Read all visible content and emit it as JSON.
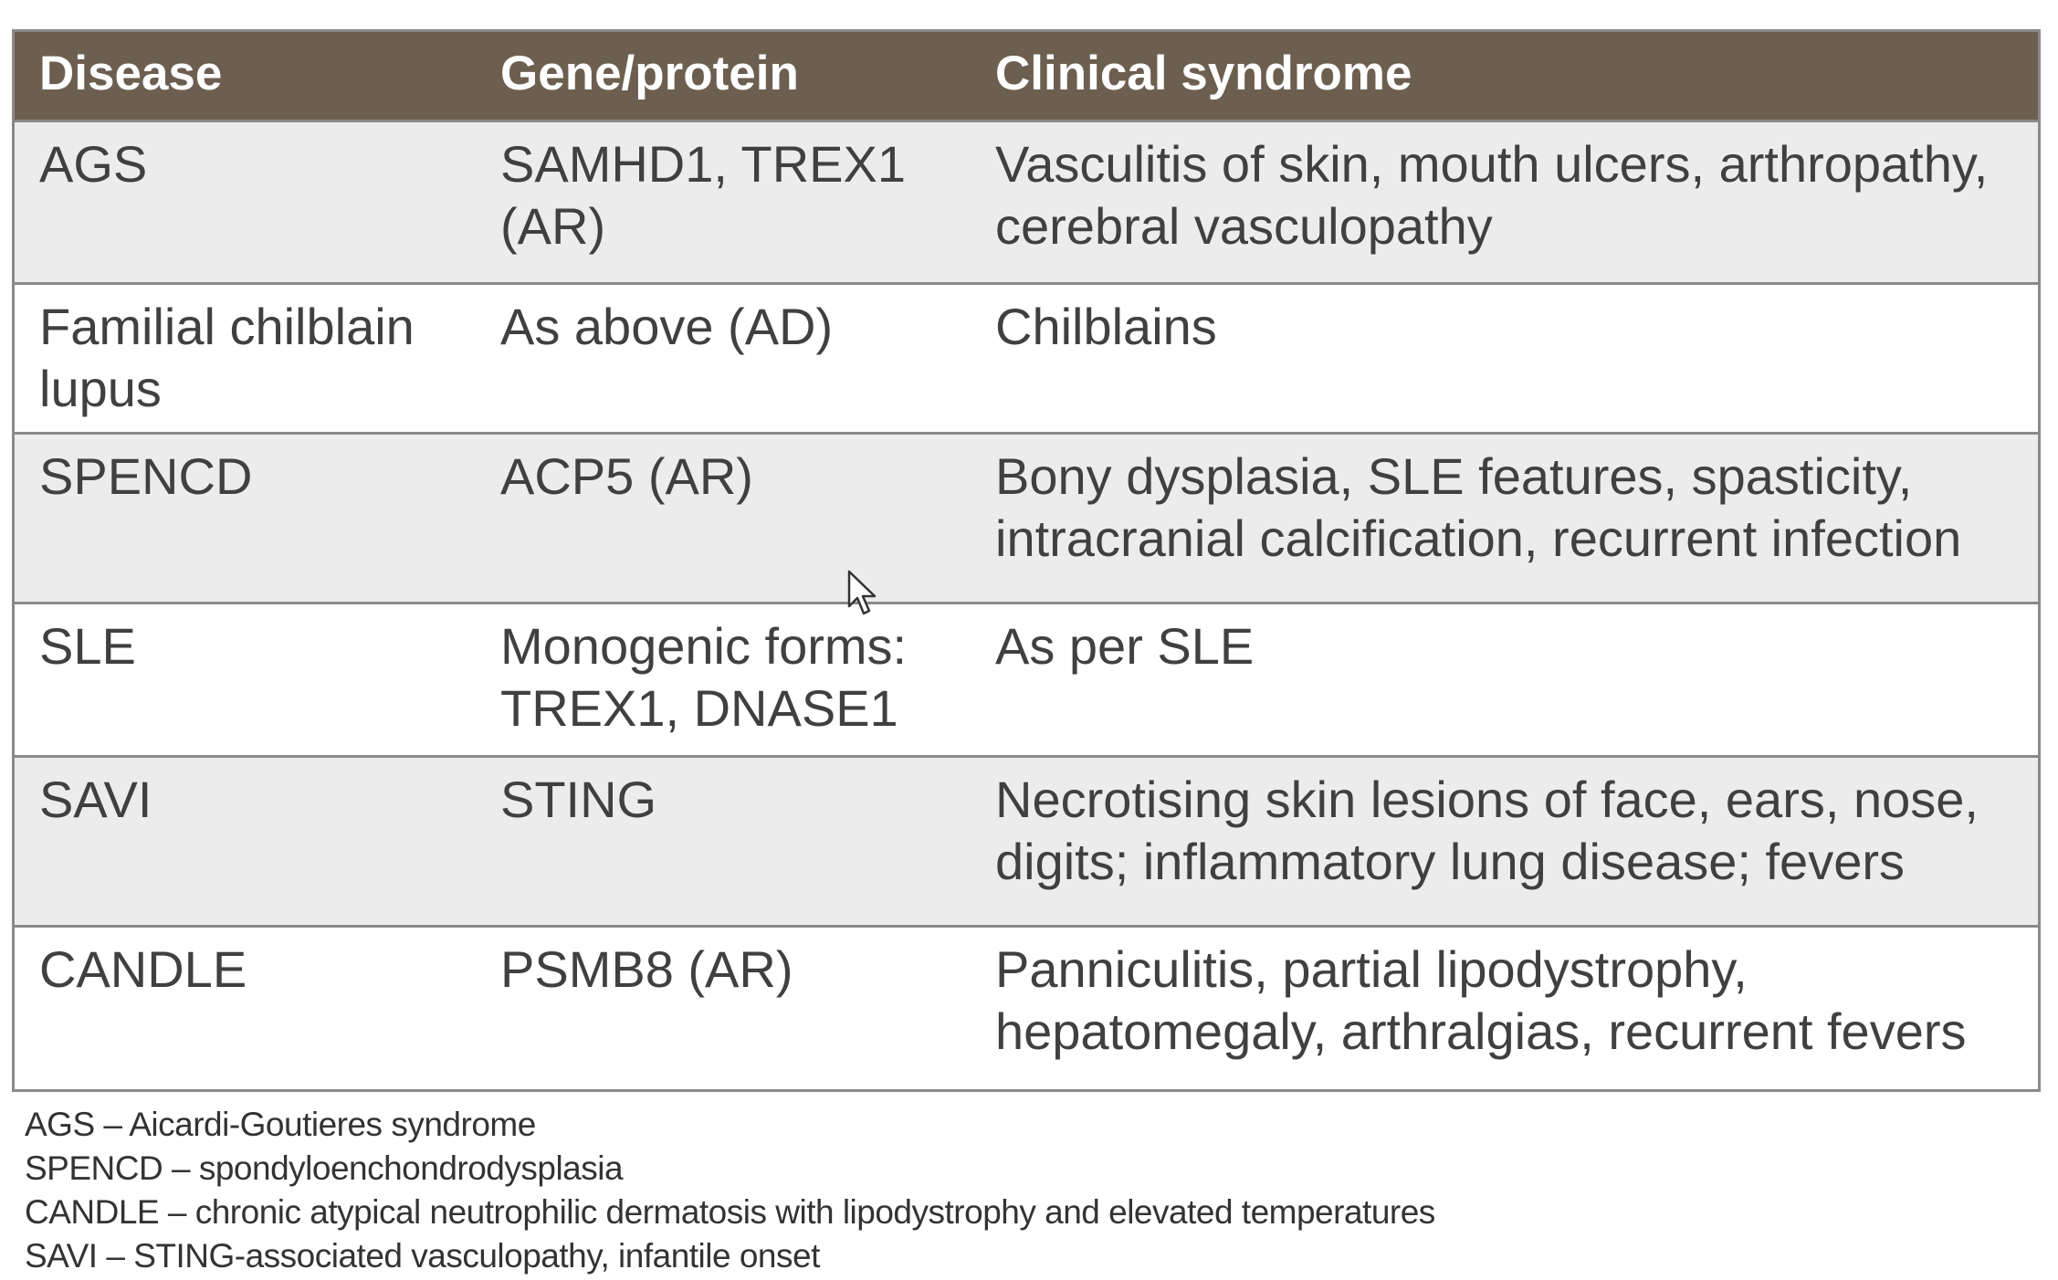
{
  "table": {
    "headers": [
      "Disease",
      "Gene/protein",
      "Clinical syndrome"
    ],
    "rows": [
      {
        "disease": [
          "AGS"
        ],
        "gene": [
          "SAMHD1, TREX1",
          "(AR)"
        ],
        "syndrome": [
          "Vasculitis of skin, mouth ulcers, arthropathy,",
          "cerebral vasculopathy"
        ]
      },
      {
        "disease": [
          "Familial chilblain",
          "lupus"
        ],
        "gene": [
          "As above (AD)"
        ],
        "syndrome": [
          "Chilblains"
        ]
      },
      {
        "disease": [
          "SPENCD"
        ],
        "gene": [
          "ACP5 (AR)"
        ],
        "syndrome": [
          "Bony dysplasia, SLE features, spasticity,",
          "intracranial calcification, recurrent infection"
        ]
      },
      {
        "disease": [
          "SLE"
        ],
        "gene": [
          "Monogenic forms:",
          "TREX1, DNASE1"
        ],
        "syndrome": [
          "As per SLE"
        ]
      },
      {
        "disease": [
          "SAVI"
        ],
        "gene": [
          "STING"
        ],
        "syndrome": [
          "Necrotising skin lesions of face, ears, nose,",
          "digits; inflammatory lung disease; fevers"
        ]
      },
      {
        "disease": [
          "CANDLE"
        ],
        "gene": [
          "PSMB8 (AR)"
        ],
        "syndrome": [
          "Panniculitis, partial lipodystrophy,",
          "hepatomegaly, arthralgias, recurrent fevers"
        ]
      }
    ]
  },
  "footnotes": [
    "AGS – Aicardi-Goutieres syndrome",
    "SPENCD – spondyloenchondrodysplasia",
    "CANDLE – chronic atypical neutrophilic dermatosis with lipodystrophy and elevated temperatures",
    "SAVI – STING-associated vasculopathy, infantile onset"
  ],
  "colors": {
    "header_bg": "#6d5f50",
    "shaded_row_bg": "#ececec",
    "border": "#8a8a8a"
  },
  "icons": {
    "cursor": "mouse-pointer-icon"
  }
}
